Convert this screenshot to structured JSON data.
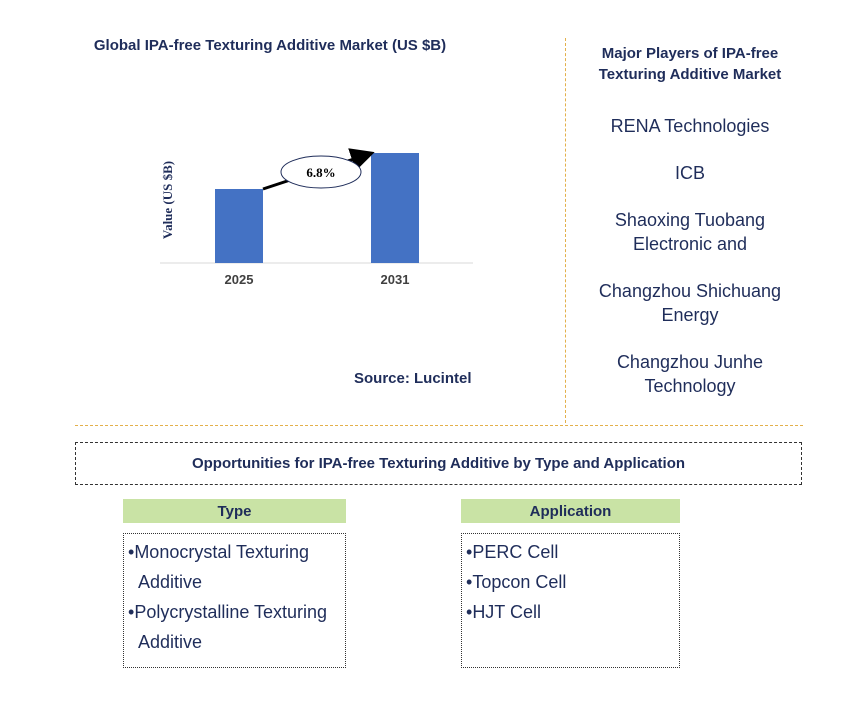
{
  "chart_data": {
    "type": "bar",
    "title": "Global IPA-free Texturing Additive Market (US $B)",
    "ylabel": "Value (US $B)",
    "categories": [
      "2025",
      "2031"
    ],
    "values": [
      0.74,
      1.1
    ],
    "ylim": [
      0,
      1.2
    ],
    "annotation": "6.8%",
    "bar_color": "#4472c4",
    "grid": false
  },
  "source": "Source: Lucintel",
  "players": {
    "title": "Major Players of IPA-free Texturing Additive Market",
    "items": [
      "RENA Technologies",
      "ICB",
      "Shaoxing Tuobang Electronic and",
      "Changzhou Shichuang Energy",
      "Changzhou Junhe Technology"
    ]
  },
  "opportunities": {
    "title": "Opportunities for IPA-free Texturing Additive by Type and Application",
    "type": {
      "heading": "Type",
      "items": [
        "Monocrystal Texturing Additive",
        "Polycrystalline Texturing Additive"
      ]
    },
    "application": {
      "heading": "Application",
      "items": [
        "PERC Cell",
        "Topcon Cell",
        "HJT Cell"
      ]
    }
  },
  "colors": {
    "accent": "#4472c4",
    "header_green": "#c9e3a5",
    "divider": "#e3b04b",
    "text": "#1f2d5a"
  }
}
